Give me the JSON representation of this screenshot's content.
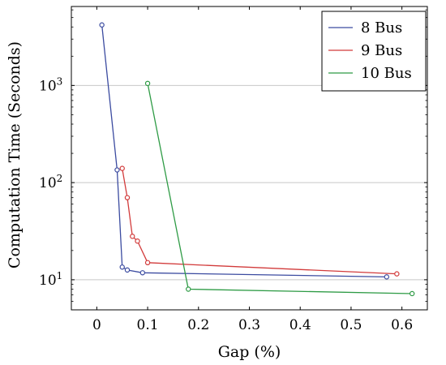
{
  "chart_data": {
    "type": "line",
    "title": "",
    "xlabel": "Gap (%)",
    "ylabel": "Computation Time (Seconds)",
    "xlim": [
      -0.05,
      0.65
    ],
    "ylim": [
      4.9,
      6500
    ],
    "yscale": "log",
    "x_ticks": [
      0,
      0.1,
      0.2,
      0.3,
      0.4,
      0.5,
      0.6
    ],
    "x_tick_labels": [
      "0",
      "0.1",
      "0.2",
      "0.3",
      "0.4",
      "0.5",
      "0.6"
    ],
    "y_ticks": [
      10,
      100,
      1000
    ],
    "y_tick_labels": [
      "10¹",
      "10²",
      "10³"
    ],
    "y_gridlines": true,
    "legend_position": "top-right",
    "series": [
      {
        "name": "8 Bus",
        "color": "#3b4ba0",
        "points": [
          {
            "x": 0.01,
            "y": 4200
          },
          {
            "x": 0.04,
            "y": 135
          },
          {
            "x": 0.05,
            "y": 13.5
          },
          {
            "x": 0.06,
            "y": 12.6
          },
          {
            "x": 0.09,
            "y": 11.8
          },
          {
            "x": 0.57,
            "y": 10.7
          }
        ]
      },
      {
        "name": "9 Bus",
        "color": "#d23b3b",
        "points": [
          {
            "x": 0.05,
            "y": 140
          },
          {
            "x": 0.06,
            "y": 70
          },
          {
            "x": 0.07,
            "y": 28
          },
          {
            "x": 0.08,
            "y": 25
          },
          {
            "x": 0.1,
            "y": 15
          },
          {
            "x": 0.59,
            "y": 11.5
          }
        ]
      },
      {
        "name": "10 Bus",
        "color": "#2e9b45",
        "points": [
          {
            "x": 0.1,
            "y": 1050
          },
          {
            "x": 0.18,
            "y": 8
          },
          {
            "x": 0.62,
            "y": 7.2
          }
        ]
      }
    ]
  }
}
